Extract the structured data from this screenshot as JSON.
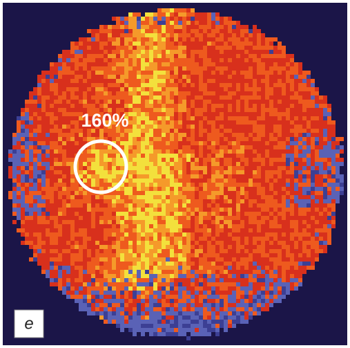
{
  "annotation": "160%",
  "panel_label": "e"
}
